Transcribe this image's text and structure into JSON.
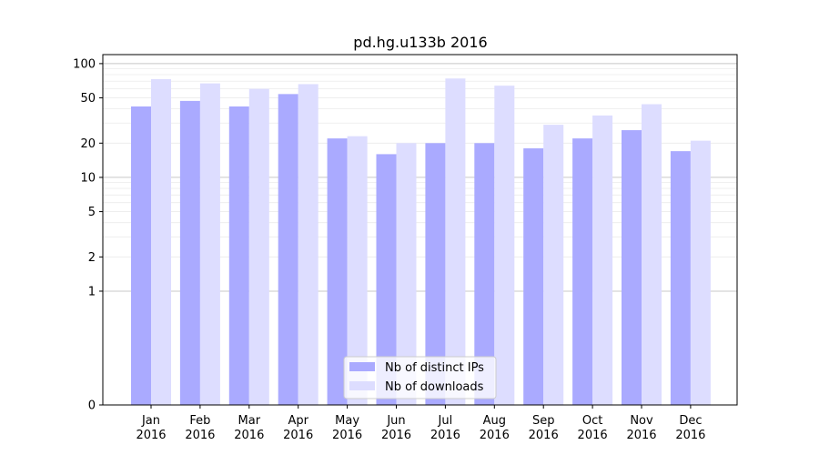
{
  "chart_data": {
    "type": "bar",
    "title": "pd.hg.u133b 2016",
    "xlabel": "",
    "ylabel": "",
    "yscale": "symlog",
    "ylim": [
      0,
      120
    ],
    "yticks": [
      0,
      1,
      2,
      5,
      10,
      20,
      50,
      100
    ],
    "grid": true,
    "legend_position": "bottom-center",
    "categories": [
      [
        "Jan",
        "2016"
      ],
      [
        "Feb",
        "2016"
      ],
      [
        "Mar",
        "2016"
      ],
      [
        "Apr",
        "2016"
      ],
      [
        "May",
        "2016"
      ],
      [
        "Jun",
        "2016"
      ],
      [
        "Jul",
        "2016"
      ],
      [
        "Aug",
        "2016"
      ],
      [
        "Sep",
        "2016"
      ],
      [
        "Oct",
        "2016"
      ],
      [
        "Nov",
        "2016"
      ],
      [
        "Dec",
        "2016"
      ]
    ],
    "series": [
      {
        "name": "Nb of distinct IPs",
        "color": "#aaaaff",
        "values": [
          42,
          47,
          42,
          54,
          22,
          16,
          20,
          20,
          18,
          22,
          26,
          17
        ]
      },
      {
        "name": "Nb of downloads",
        "color": "#ddddff",
        "values": [
          73,
          67,
          60,
          66,
          23,
          20,
          74,
          64,
          29,
          35,
          44,
          21
        ]
      }
    ]
  }
}
